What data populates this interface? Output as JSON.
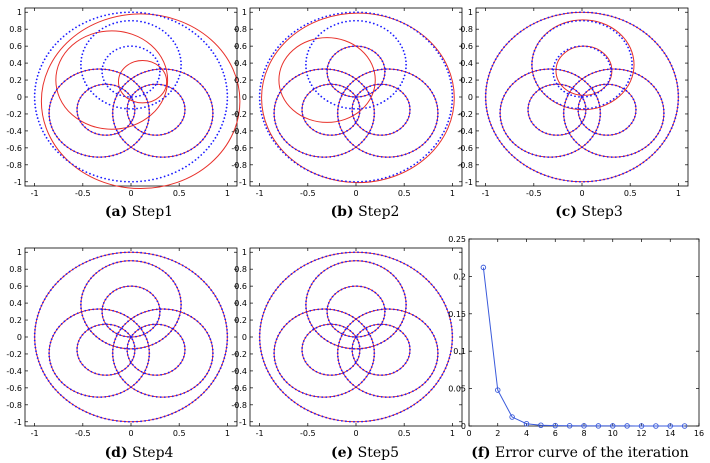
{
  "chart_data": [
    {
      "type": "scatter",
      "id": "a",
      "caption_label": "(a)",
      "caption_text": "Step1",
      "xlim": [
        -1.1,
        1.1
      ],
      "ylim": [
        -1.05,
        1.05
      ],
      "x_ticks": [
        -1,
        -0.5,
        0,
        0.5,
        1
      ],
      "y_ticks": [
        -1,
        -0.8,
        -0.6,
        -0.4,
        -0.2,
        0,
        0.2,
        0.4,
        0.6,
        0.8,
        1
      ],
      "series": [
        {
          "name": "target (dotted)",
          "color": "#1a1aff",
          "style": "points",
          "circles": [
            {
              "cx": 0,
              "cy": 0,
              "r": 1
            },
            {
              "cx": 0,
              "cy": 0.3,
              "r": 0.3
            },
            {
              "cx": -0.26,
              "cy": -0.15,
              "r": 0.3
            },
            {
              "cx": 0.26,
              "cy": -0.15,
              "r": 0.3
            },
            {
              "cx": 0,
              "cy": 0.38,
              "r": 0.52
            },
            {
              "cx": -0.33,
              "cy": -0.19,
              "r": 0.52
            },
            {
              "cx": 0.33,
              "cy": -0.19,
              "r": 0.52
            }
          ]
        },
        {
          "name": "fitted (solid)",
          "color": "#e8302a",
          "style": "line",
          "circles": [
            {
              "cx": 0.1,
              "cy": -0.05,
              "r": 1.03
            },
            {
              "cx": 0.12,
              "cy": 0.18,
              "r": 0.25
            },
            {
              "cx": -0.26,
              "cy": -0.15,
              "r": 0.3
            },
            {
              "cx": 0.26,
              "cy": -0.15,
              "r": 0.3
            },
            {
              "cx": -0.2,
              "cy": 0.2,
              "r": 0.58
            },
            {
              "cx": -0.33,
              "cy": -0.19,
              "r": 0.52
            },
            {
              "cx": 0.33,
              "cy": -0.19,
              "r": 0.52
            }
          ]
        }
      ]
    },
    {
      "type": "scatter",
      "id": "b",
      "caption_label": "(b)",
      "caption_text": "Step2",
      "xlim": [
        -1.1,
        1.1
      ],
      "ylim": [
        -1.05,
        1.05
      ],
      "x_ticks": [
        -1,
        -0.5,
        0,
        0.5,
        1
      ],
      "y_ticks": [
        -1,
        -0.8,
        -0.6,
        -0.4,
        -0.2,
        0,
        0.2,
        0.4,
        0.6,
        0.8,
        1
      ],
      "series": [
        {
          "name": "target (dotted)",
          "color": "#1a1aff",
          "style": "points",
          "circles": [
            {
              "cx": 0,
              "cy": 0,
              "r": 1
            },
            {
              "cx": 0,
              "cy": 0.3,
              "r": 0.3
            },
            {
              "cx": -0.26,
              "cy": -0.15,
              "r": 0.3
            },
            {
              "cx": 0.26,
              "cy": -0.15,
              "r": 0.3
            },
            {
              "cx": 0,
              "cy": 0.38,
              "r": 0.52
            },
            {
              "cx": -0.33,
              "cy": -0.19,
              "r": 0.52
            },
            {
              "cx": 0.33,
              "cy": -0.19,
              "r": 0.52
            }
          ]
        },
        {
          "name": "fitted (solid)",
          "color": "#e8302a",
          "style": "line",
          "circles": [
            {
              "cx": 0.02,
              "cy": -0.01,
              "r": 1.0
            },
            {
              "cx": 0,
              "cy": 0.3,
              "r": 0.3
            },
            {
              "cx": -0.26,
              "cy": -0.15,
              "r": 0.3
            },
            {
              "cx": 0.26,
              "cy": -0.15,
              "r": 0.3
            },
            {
              "cx": -0.3,
              "cy": 0.2,
              "r": 0.5
            },
            {
              "cx": -0.33,
              "cy": -0.19,
              "r": 0.52
            },
            {
              "cx": 0.33,
              "cy": -0.19,
              "r": 0.52
            }
          ]
        }
      ]
    },
    {
      "type": "scatter",
      "id": "c",
      "caption_label": "(c)",
      "caption_text": "Step3",
      "xlim": [
        -1.1,
        1.1
      ],
      "ylim": [
        -1.05,
        1.05
      ],
      "x_ticks": [
        -1,
        -0.5,
        0,
        0.5,
        1
      ],
      "y_ticks": [
        -1,
        -0.8,
        -0.6,
        -0.4,
        -0.2,
        0,
        0.2,
        0.4,
        0.6,
        0.8,
        1
      ],
      "series": [
        {
          "name": "target (dotted)",
          "color": "#1a1aff",
          "style": "points",
          "circles": [
            {
              "cx": 0,
              "cy": 0,
              "r": 1
            },
            {
              "cx": 0,
              "cy": 0.3,
              "r": 0.3
            },
            {
              "cx": -0.26,
              "cy": -0.15,
              "r": 0.3
            },
            {
              "cx": 0.26,
              "cy": -0.15,
              "r": 0.3
            },
            {
              "cx": 0,
              "cy": 0.38,
              "r": 0.52
            },
            {
              "cx": -0.33,
              "cy": -0.19,
              "r": 0.52
            },
            {
              "cx": 0.33,
              "cy": -0.19,
              "r": 0.52
            }
          ]
        },
        {
          "name": "fitted (solid)",
          "color": "#e8302a",
          "style": "line",
          "circles": [
            {
              "cx": 0,
              "cy": 0,
              "r": 1
            },
            {
              "cx": 0.02,
              "cy": 0.31,
              "r": 0.29
            },
            {
              "cx": -0.26,
              "cy": -0.15,
              "r": 0.3
            },
            {
              "cx": 0.26,
              "cy": -0.15,
              "r": 0.3
            },
            {
              "cx": 0.01,
              "cy": 0.38,
              "r": 0.53
            },
            {
              "cx": -0.33,
              "cy": -0.19,
              "r": 0.52
            },
            {
              "cx": 0.33,
              "cy": -0.19,
              "r": 0.52
            }
          ]
        }
      ]
    },
    {
      "type": "scatter",
      "id": "d",
      "caption_label": "(d)",
      "caption_text": "Step4",
      "xlim": [
        -1.1,
        1.1
      ],
      "ylim": [
        -1.05,
        1.05
      ],
      "x_ticks": [
        -1,
        -0.5,
        0,
        0.5,
        1
      ],
      "y_ticks": [
        -1,
        -0.8,
        -0.6,
        -0.4,
        -0.2,
        0,
        0.2,
        0.4,
        0.6,
        0.8,
        1
      ],
      "series": [
        {
          "name": "target (dotted)",
          "color": "#1a1aff",
          "style": "points",
          "circles": [
            {
              "cx": 0,
              "cy": 0,
              "r": 1
            },
            {
              "cx": 0,
              "cy": 0.3,
              "r": 0.3
            },
            {
              "cx": -0.26,
              "cy": -0.15,
              "r": 0.3
            },
            {
              "cx": 0.26,
              "cy": -0.15,
              "r": 0.3
            },
            {
              "cx": 0,
              "cy": 0.38,
              "r": 0.52
            },
            {
              "cx": -0.33,
              "cy": -0.19,
              "r": 0.52
            },
            {
              "cx": 0.33,
              "cy": -0.19,
              "r": 0.52
            }
          ]
        },
        {
          "name": "fitted (solid)",
          "color": "#e8302a",
          "style": "line",
          "circles": [
            {
              "cx": 0,
              "cy": 0,
              "r": 1
            },
            {
              "cx": 0,
              "cy": 0.3,
              "r": 0.3
            },
            {
              "cx": -0.26,
              "cy": -0.15,
              "r": 0.3
            },
            {
              "cx": 0.26,
              "cy": -0.15,
              "r": 0.3
            },
            {
              "cx": 0,
              "cy": 0.38,
              "r": 0.52
            },
            {
              "cx": -0.33,
              "cy": -0.19,
              "r": 0.52
            },
            {
              "cx": 0.33,
              "cy": -0.19,
              "r": 0.52
            }
          ]
        }
      ]
    },
    {
      "type": "scatter",
      "id": "e",
      "caption_label": "(e)",
      "caption_text": "Step5",
      "xlim": [
        -1.1,
        1.1
      ],
      "ylim": [
        -1.05,
        1.05
      ],
      "x_ticks": [
        -1,
        -0.5,
        0,
        0.5,
        1
      ],
      "y_ticks": [
        -1,
        -0.8,
        -0.6,
        -0.4,
        -0.2,
        0,
        0.2,
        0.4,
        0.6,
        0.8,
        1
      ],
      "series": [
        {
          "name": "target (dotted)",
          "color": "#1a1aff",
          "style": "points",
          "circles": [
            {
              "cx": 0,
              "cy": 0,
              "r": 1
            },
            {
              "cx": 0,
              "cy": 0.3,
              "r": 0.3
            },
            {
              "cx": -0.26,
              "cy": -0.15,
              "r": 0.3
            },
            {
              "cx": 0.26,
              "cy": -0.15,
              "r": 0.3
            },
            {
              "cx": 0,
              "cy": 0.38,
              "r": 0.52
            },
            {
              "cx": -0.33,
              "cy": -0.19,
              "r": 0.52
            },
            {
              "cx": 0.33,
              "cy": -0.19,
              "r": 0.52
            }
          ]
        },
        {
          "name": "fitted (solid)",
          "color": "#e8302a",
          "style": "line",
          "circles": [
            {
              "cx": 0,
              "cy": 0,
              "r": 1
            },
            {
              "cx": 0,
              "cy": 0.3,
              "r": 0.3
            },
            {
              "cx": -0.26,
              "cy": -0.15,
              "r": 0.3
            },
            {
              "cx": 0.26,
              "cy": -0.15,
              "r": 0.3
            },
            {
              "cx": 0,
              "cy": 0.38,
              "r": 0.52
            },
            {
              "cx": -0.33,
              "cy": -0.19,
              "r": 0.52
            },
            {
              "cx": 0.33,
              "cy": -0.19,
              "r": 0.52
            }
          ]
        }
      ]
    },
    {
      "type": "line",
      "id": "f",
      "caption_label": "(f)",
      "caption_text": "Error curve of the iteration",
      "xlim": [
        0,
        16
      ],
      "ylim": [
        0,
        0.25
      ],
      "x_ticks": [
        0,
        2,
        4,
        6,
        8,
        10,
        12,
        14,
        16
      ],
      "y_ticks": [
        0,
        0.05,
        0.1,
        0.15,
        0.2,
        0.25
      ],
      "series": [
        {
          "name": "error",
          "color": "#3b5bdb",
          "marker": "circle",
          "x": [
            1,
            2,
            3,
            4,
            5,
            6,
            7,
            8,
            9,
            10,
            11,
            12,
            13,
            14,
            15
          ],
          "values": [
            0.212,
            0.048,
            0.012,
            0.003,
            0.001,
            0.0005,
            0.0003,
            0.0002,
            0.0001,
            0.0001,
            0.0001,
            0,
            0,
            0,
            0
          ]
        }
      ]
    }
  ]
}
